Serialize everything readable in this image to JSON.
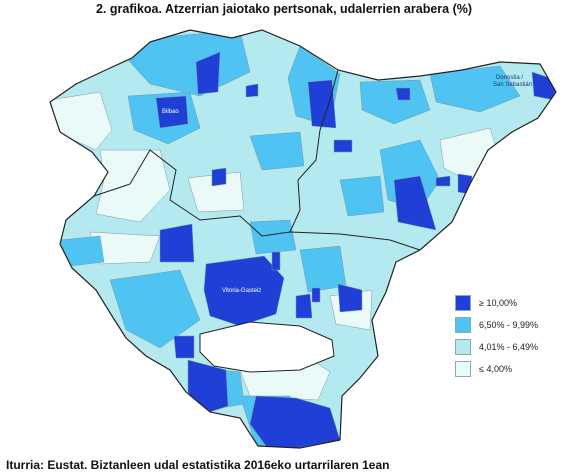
{
  "title": "2. grafikoa. Atzerrian jaiotako pertsonak, udalerrien arabera (%)",
  "source": "Iturria: Eustat. Biztanleen udal estatistika 2016eko urtarrilaren 1ean",
  "colors": {
    "c1": "#1f3fd6",
    "c2": "#4fc3f2",
    "c3": "#b4eaef",
    "c4": "#eafaf8",
    "border": "#222222",
    "internal": "#777777"
  },
  "legend": [
    {
      "label": "≥ 10,00%",
      "color": "#1f3fd6"
    },
    {
      "label": "6,50% - 9,99%",
      "color": "#4fc3f2"
    },
    {
      "label": "4,01% - 6,49%",
      "color": "#b4eaef"
    },
    {
      "label": "≤ 4,00%",
      "color": "#eafaf8"
    }
  ],
  "places": {
    "bilbao": "Bilbao",
    "donostia_1": "Donostia /",
    "donostia_2": "San Sebastián",
    "vitoria": "Vitoria-Gasteiz"
  }
}
